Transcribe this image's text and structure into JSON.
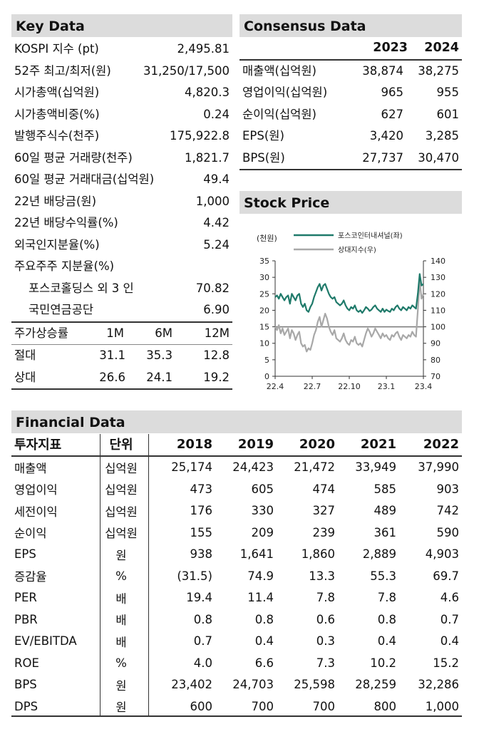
{
  "key_data": {
    "title": "Key Data",
    "rows": [
      {
        "label": "KOSPI 지수 (pt)",
        "value": "2,495.81"
      },
      {
        "label": "52주 최고/최저(원)",
        "value": "31,250/17,500"
      },
      {
        "label": "시가총액(십억원)",
        "value": "4,820.3"
      },
      {
        "label": "시가총액비중(%)",
        "value": "0.24"
      },
      {
        "label": "발행주식수(천주)",
        "value": "175,922.8"
      },
      {
        "label": "60일 평균 거래량(천주)",
        "value": "1,821.7"
      },
      {
        "label": "60일 평균 거래대금(십억원)",
        "value": "49.4"
      },
      {
        "label": "22년 배당금(원)",
        "value": "1,000"
      },
      {
        "label": "22년 배당수익률(%)",
        "value": "4.42"
      },
      {
        "label": "외국인지분율(%)",
        "value": "5.24"
      },
      {
        "label": "주요주주 지분율(%)",
        "value": ""
      },
      {
        "label": "포스코홀딩스 외 3 인",
        "value": "70.82"
      },
      {
        "label": "국민연금공단",
        "value": "6.90"
      }
    ],
    "returns": {
      "header": [
        "주가상승률",
        "1M",
        "6M",
        "12M"
      ],
      "rows": [
        {
          "label": "절대",
          "values": [
            "31.1",
            "35.3",
            "12.8"
          ]
        },
        {
          "label": "상대",
          "values": [
            "26.6",
            "24.1",
            "19.2"
          ]
        }
      ]
    }
  },
  "consensus": {
    "title": "Consensus Data",
    "years": [
      "2023",
      "2024"
    ],
    "rows": [
      {
        "label": "매출액(십억원)",
        "values": [
          "38,874",
          "38,275"
        ]
      },
      {
        "label": "영업이익(십억원)",
        "values": [
          "965",
          "955"
        ]
      },
      {
        "label": "순이익(십억원)",
        "values": [
          "627",
          "601"
        ]
      },
      {
        "label": "EPS(원)",
        "values": [
          "3,420",
          "3,285"
        ]
      },
      {
        "label": "BPS(원)",
        "values": [
          "27,737",
          "30,470"
        ]
      }
    ]
  },
  "stock_price": {
    "title": "Stock Price",
    "unit_label": "(천원)",
    "legend": [
      "포스코인터내셔널(좌)",
      "상대지수(우)"
    ],
    "colors": {
      "price": "#1f7a6a",
      "relative": "#a8a8a8",
      "baseline": "#777777"
    }
  },
  "chart_data": {
    "type": "line",
    "title": "Stock Price",
    "x_ticks": [
      "22.4",
      "22.7",
      "22.10",
      "23.1",
      "23.4"
    ],
    "left_axis": {
      "label": "(천원)",
      "ylim": [
        0,
        35
      ],
      "ticks": [
        0,
        5,
        10,
        15,
        20,
        25,
        30,
        35
      ]
    },
    "right_axis": {
      "ylim": [
        70,
        140
      ],
      "ticks": [
        70,
        80,
        90,
        100,
        110,
        120,
        130,
        140
      ]
    },
    "baseline_right": 100,
    "series": [
      {
        "name": "포스코인터내셔널(좌)",
        "axis": "left",
        "x": [
          0,
          0.05,
          0.1,
          0.15,
          0.2,
          0.25,
          0.3,
          0.35,
          0.4,
          0.45,
          0.5,
          0.55,
          0.6,
          0.65,
          0.7,
          0.75,
          0.8,
          0.85,
          0.9,
          0.95,
          1.0,
          1.05,
          1.1,
          1.15,
          1.2,
          1.25,
          1.3,
          1.35,
          1.4,
          1.45,
          1.5,
          1.55,
          1.6,
          1.65,
          1.7,
          1.75,
          1.8,
          1.85,
          1.9,
          1.95,
          2.0,
          2.05,
          2.1,
          2.15,
          2.2,
          2.25,
          2.3,
          2.35,
          2.4,
          2.45,
          2.5,
          2.55,
          2.6,
          2.65,
          2.7,
          2.75,
          2.8,
          2.85,
          2.9,
          2.95,
          3.0,
          3.05,
          3.1,
          3.15,
          3.2,
          3.25,
          3.3,
          3.35,
          3.4,
          3.45,
          3.5,
          3.55,
          3.6,
          3.65,
          3.7,
          3.75,
          3.8,
          3.85,
          3.9,
          3.95,
          4.0
        ],
        "values": [
          24,
          24.5,
          23.5,
          25,
          24,
          23,
          24,
          24.5,
          22,
          25,
          24,
          23,
          24.5,
          25,
          22,
          21,
          22,
          20,
          19.5,
          21,
          22,
          24,
          25.5,
          27,
          28,
          26,
          27.5,
          28,
          26.5,
          25,
          24,
          23.5,
          24,
          22.5,
          22,
          21.5,
          22,
          23,
          21.5,
          20.5,
          20,
          21,
          20.5,
          21.5,
          20,
          19.5,
          20,
          19.2,
          20,
          21,
          20.5,
          19.8,
          20.2,
          21,
          21.5,
          20.5,
          20,
          19.5,
          20.5,
          19.5,
          20.2,
          19.8,
          19.5,
          20.5,
          20,
          21,
          21.5,
          20.5,
          20,
          21,
          20.5,
          20,
          21,
          20.5,
          21.5,
          21,
          20.5,
          25,
          31,
          27.5,
          28
        ]
      },
      {
        "name": "상대지수(우)",
        "axis": "right",
        "x": [
          0,
          0.05,
          0.1,
          0.15,
          0.2,
          0.25,
          0.3,
          0.35,
          0.4,
          0.45,
          0.5,
          0.55,
          0.6,
          0.65,
          0.7,
          0.75,
          0.8,
          0.85,
          0.9,
          0.95,
          1.0,
          1.05,
          1.1,
          1.15,
          1.2,
          1.25,
          1.3,
          1.35,
          1.4,
          1.45,
          1.5,
          1.55,
          1.6,
          1.65,
          1.7,
          1.75,
          1.8,
          1.85,
          1.9,
          1.95,
          2.0,
          2.05,
          2.1,
          2.15,
          2.2,
          2.25,
          2.3,
          2.35,
          2.4,
          2.45,
          2.5,
          2.55,
          2.6,
          2.65,
          2.7,
          2.75,
          2.8,
          2.85,
          2.9,
          2.95,
          3.0,
          3.05,
          3.1,
          3.15,
          3.2,
          3.25,
          3.3,
          3.35,
          3.4,
          3.45,
          3.5,
          3.55,
          3.6,
          3.65,
          3.7,
          3.75,
          3.8,
          3.85,
          3.9,
          3.95,
          4.0
        ],
        "values": [
          100,
          98,
          101,
          96,
          99,
          95,
          97,
          99,
          93,
          98,
          96,
          92,
          95,
          97,
          90,
          88,
          89,
          85,
          87,
          86,
          90,
          95,
          98,
          103,
          106,
          100,
          104,
          108,
          105,
          100,
          97,
          95,
          98,
          93,
          92,
          91,
          93,
          96,
          92,
          90,
          89,
          92,
          91,
          94,
          90,
          89,
          90,
          88,
          92,
          96,
          99,
          97,
          94,
          96,
          99,
          97,
          95,
          93,
          96,
          94,
          95,
          93,
          92,
          95,
          94,
          96,
          97,
          94,
          92,
          95,
          94,
          93,
          95,
          94,
          97,
          95,
          94,
          110,
          128,
          117,
          120
        ]
      }
    ]
  },
  "financial": {
    "title": "Financial Data",
    "headers": [
      "투자지표",
      "단위",
      "2018",
      "2019",
      "2020",
      "2021",
      "2022"
    ],
    "rows": [
      {
        "label": "매출액",
        "unit": "십억원",
        "values": [
          "25,174",
          "24,423",
          "21,472",
          "33,949",
          "37,990"
        ]
      },
      {
        "label": "영업이익",
        "unit": "십억원",
        "values": [
          "473",
          "605",
          "474",
          "585",
          "903"
        ]
      },
      {
        "label": "세전이익",
        "unit": "십억원",
        "values": [
          "176",
          "330",
          "327",
          "489",
          "742"
        ]
      },
      {
        "label": "순이익",
        "unit": "십억원",
        "values": [
          "155",
          "209",
          "239",
          "361",
          "590"
        ]
      },
      {
        "label": "EPS",
        "unit": "원",
        "values": [
          "938",
          "1,641",
          "1,860",
          "2,889",
          "4,903"
        ]
      },
      {
        "label": "증감율",
        "unit": "%",
        "values": [
          "(31.5)",
          "74.9",
          "13.3",
          "55.3",
          "69.7"
        ]
      },
      {
        "label": "PER",
        "unit": "배",
        "values": [
          "19.4",
          "11.4",
          "7.8",
          "7.8",
          "4.6"
        ]
      },
      {
        "label": "PBR",
        "unit": "배",
        "values": [
          "0.8",
          "0.8",
          "0.6",
          "0.8",
          "0.7"
        ]
      },
      {
        "label": "EV/EBITDA",
        "unit": "배",
        "values": [
          "0.7",
          "0.4",
          "0.3",
          "0.4",
          "0.4"
        ]
      },
      {
        "label": "ROE",
        "unit": "%",
        "values": [
          "4.0",
          "6.6",
          "7.3",
          "10.2",
          "15.2"
        ]
      },
      {
        "label": "BPS",
        "unit": "원",
        "values": [
          "23,402",
          "24,703",
          "25,598",
          "28,259",
          "32,286"
        ]
      },
      {
        "label": "DPS",
        "unit": "원",
        "values": [
          "600",
          "700",
          "700",
          "800",
          "1,000"
        ]
      }
    ]
  }
}
